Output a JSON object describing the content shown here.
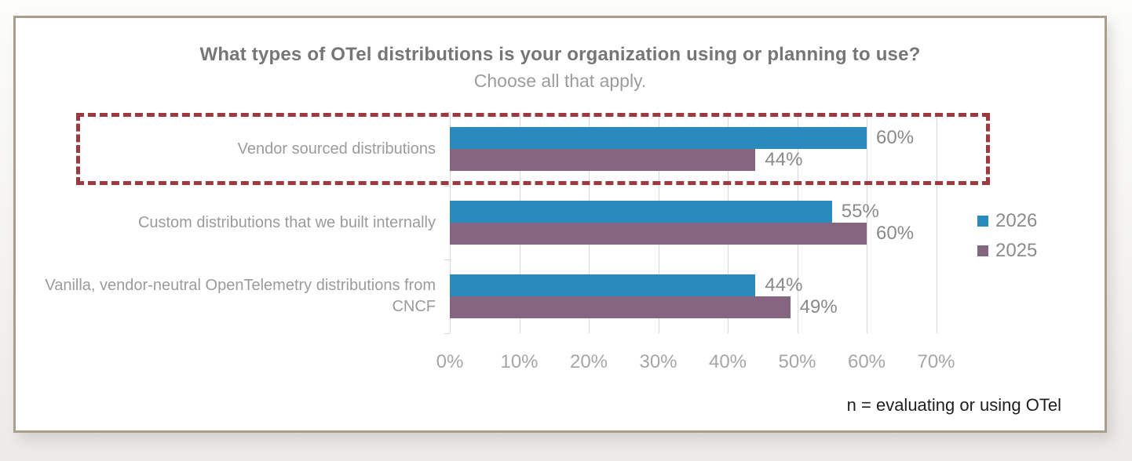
{
  "chart_data": {
    "type": "bar",
    "orientation": "horizontal",
    "title": "What types of OTel distributions is your organization using or planning to use?",
    "subtitle": "Choose all that apply.",
    "categories": [
      "Vendor sourced distributions",
      "Custom distributions that we built internally",
      "Vanilla, vendor-neutral OpenTelemetry distributions from CNCF"
    ],
    "series": [
      {
        "name": "2026",
        "color": "#2b8abd",
        "values": [
          60,
          55,
          44
        ]
      },
      {
        "name": "2025",
        "color": "#866581",
        "values": [
          44,
          60,
          49
        ]
      }
    ],
    "value_suffix": "%",
    "x_ticks": [
      "0%",
      "10%",
      "20%",
      "30%",
      "40%",
      "50%",
      "60%",
      "70%"
    ],
    "xlim": [
      0,
      70
    ],
    "grid": true,
    "legend_position": "right",
    "highlight": {
      "shape": "dashed-box",
      "category_index": 0,
      "color": "#9d3a3f"
    },
    "note": "n = evaluating or using OTel"
  },
  "colors": {
    "frame_border": "#a89e8d",
    "grid": "#d9d9d9",
    "bar_2026": "#2b8abd",
    "bar_2025": "#866581",
    "highlight": "#9d3a3f"
  }
}
